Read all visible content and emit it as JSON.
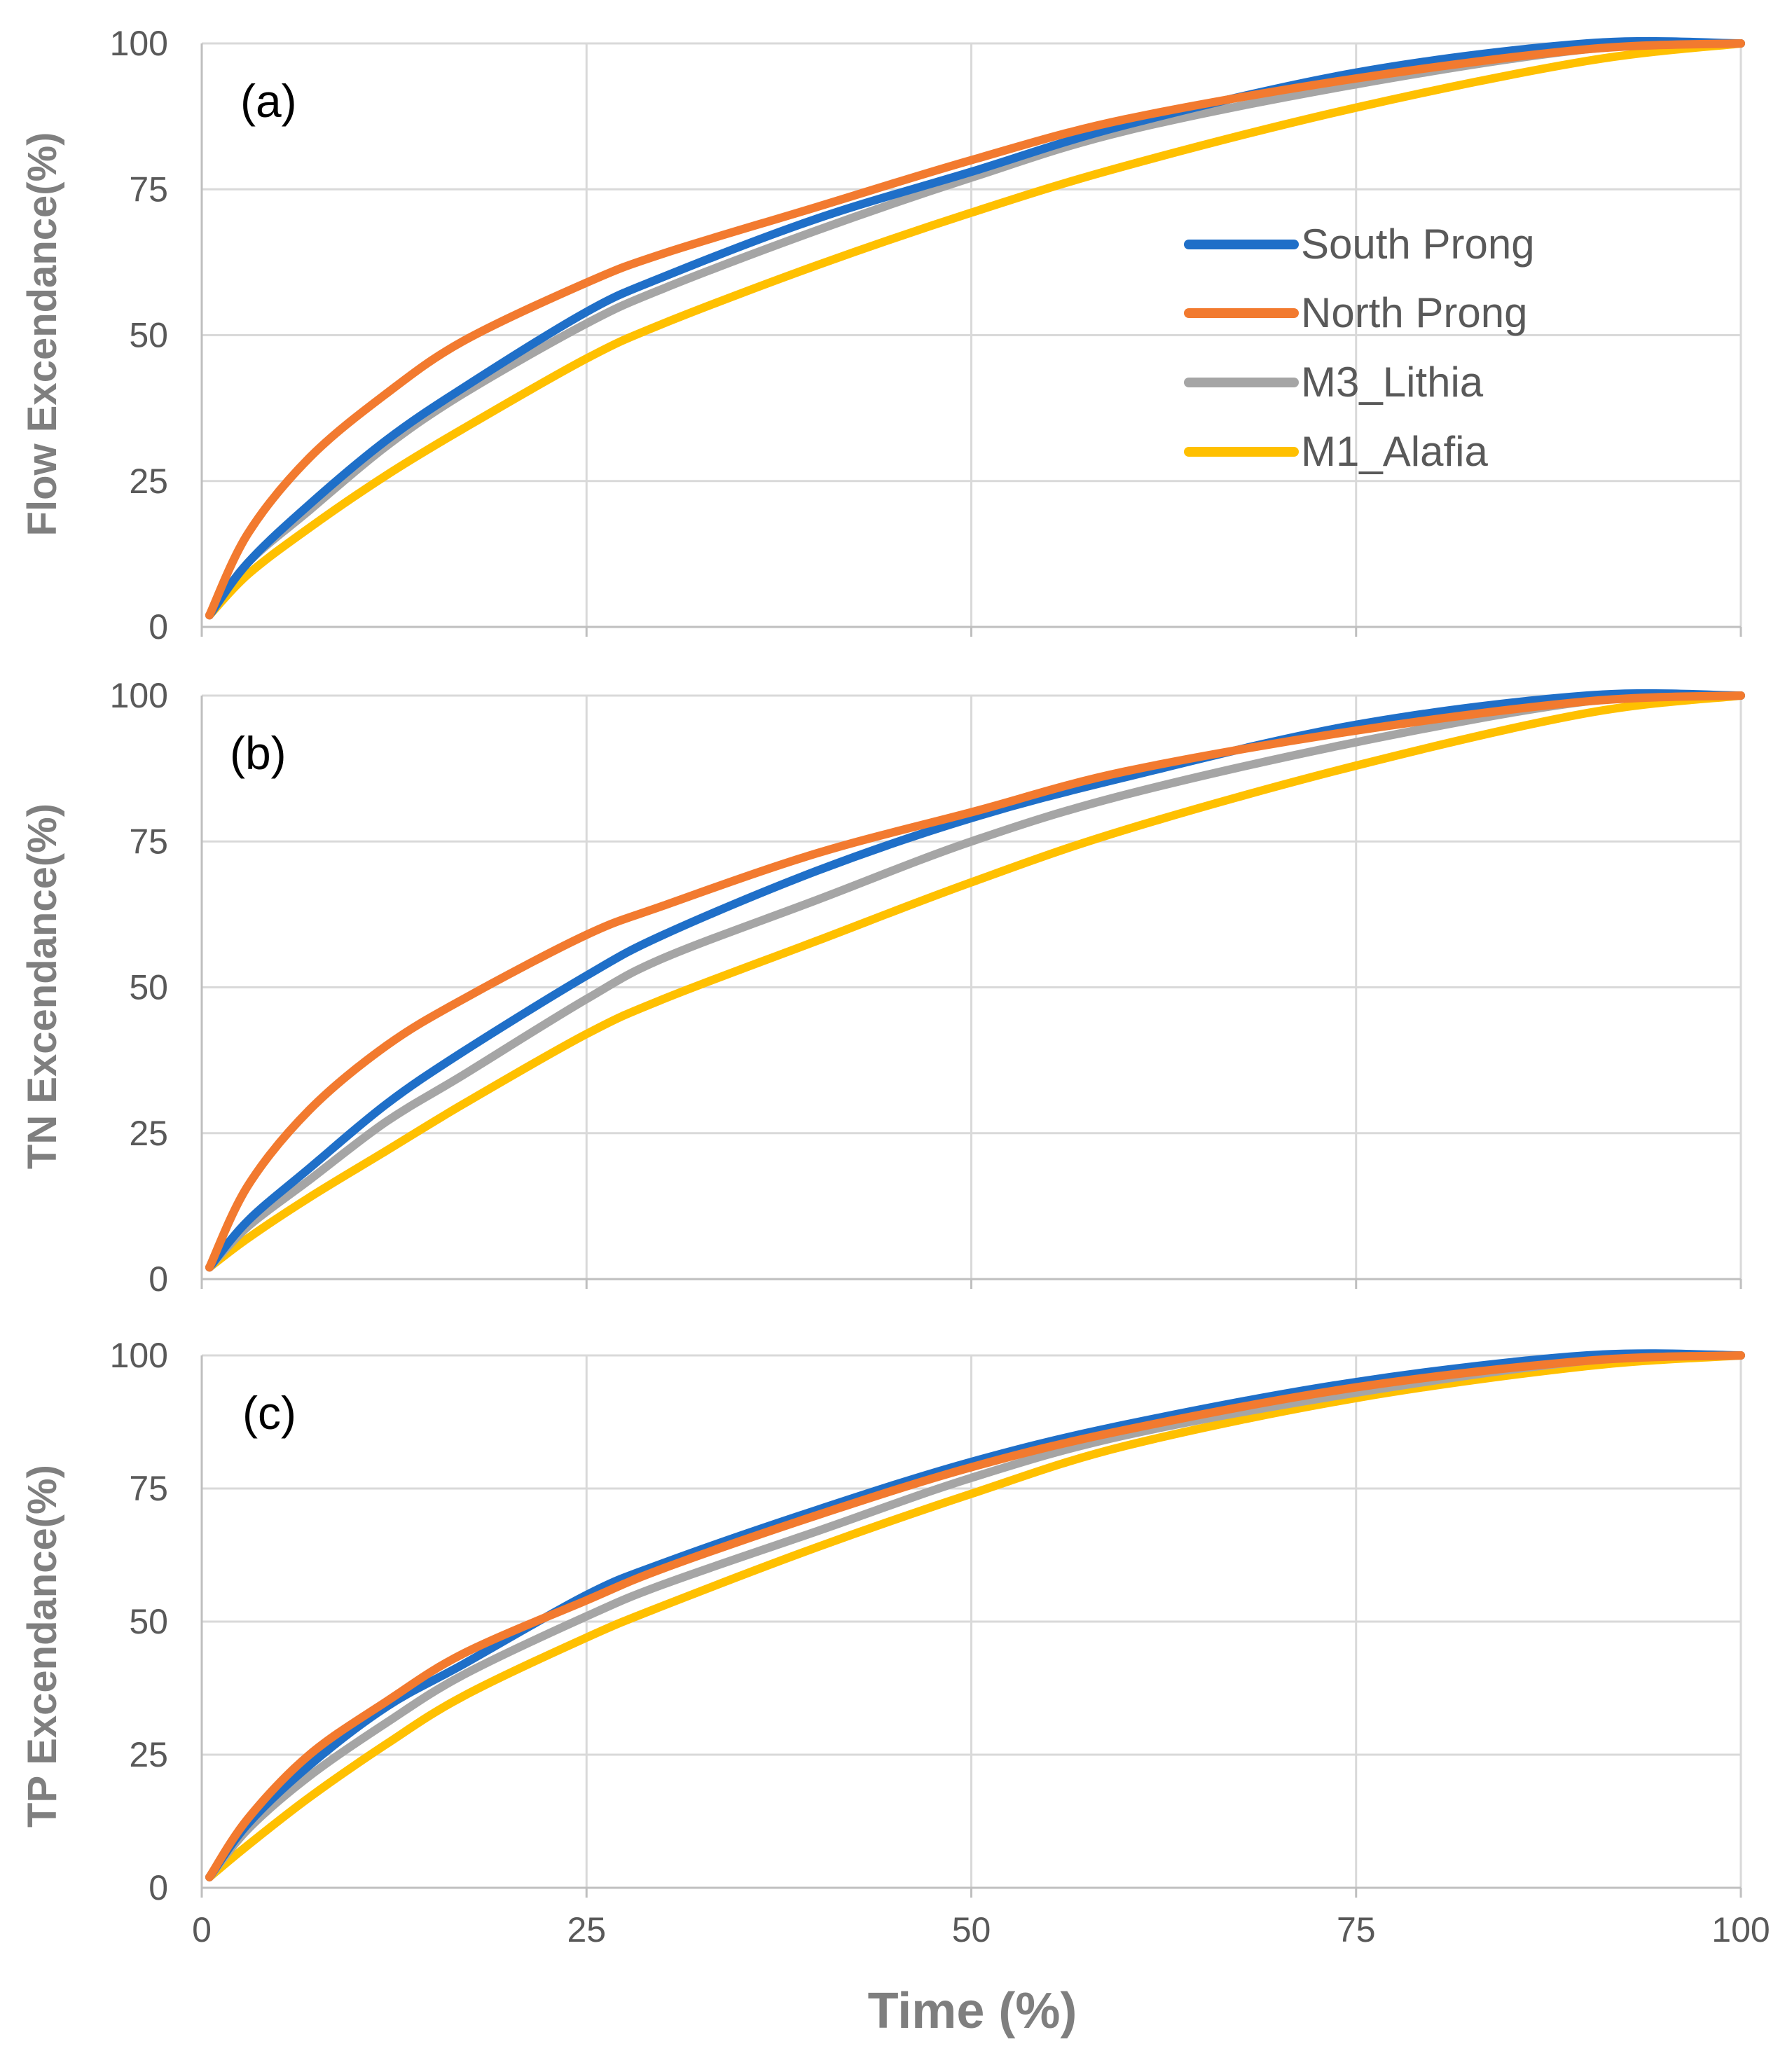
{
  "chart_data": {
    "type": "line",
    "xlabel": "Time (%)",
    "x_ticks": [
      "0",
      "25",
      "50",
      "75",
      "100"
    ],
    "y_ticks": [
      "0",
      "25",
      "50",
      "75",
      "100"
    ],
    "xlim": [
      0,
      100
    ],
    "ylim": [
      0,
      100
    ],
    "grid": true,
    "legend": {
      "placement": "top-right of panel (a)",
      "entries": [
        "South Prong",
        "North Prong",
        "M3_Lithia",
        "M1_Alafia"
      ]
    },
    "colors": {
      "South Prong": "#1f6fc8",
      "North Prong": "#f27a2f",
      "M3_Lithia": "#a5a5a5",
      "M1_Alafia": "#ffc000"
    },
    "series_order": [
      "M1_Alafia",
      "M3_Lithia",
      "South Prong",
      "North Prong"
    ],
    "x": [
      0.5,
      3,
      7,
      12,
      17,
      25,
      30,
      40,
      50,
      60,
      75,
      90,
      100
    ],
    "panels": [
      {
        "label": "(a)",
        "ylabel": "Flow Excendance(%)",
        "series": [
          {
            "name": "South Prong",
            "values": [
              2,
              11,
              21,
              32,
              41,
              54,
              60,
              70,
              78,
              86,
              95,
              100,
              100
            ]
          },
          {
            "name": "North Prong",
            "values": [
              2,
              16,
              29,
              40,
              49,
              59,
              64,
              72,
              80,
              87,
              94,
              99,
              100
            ]
          },
          {
            "name": "M3_Lithia",
            "values": [
              2,
              11,
              20,
              31,
              40,
              52,
              58,
              68,
              77,
              85,
              93,
              99,
              100
            ]
          },
          {
            "name": "M1_Alafia",
            "values": [
              2,
              9,
              17,
              26,
              34,
              46,
              52,
              62,
              71,
              79,
              89,
              97,
              100
            ]
          }
        ]
      },
      {
        "label": "(b)",
        "ylabel": "TN Excendance(%)",
        "series": [
          {
            "name": "South Prong",
            "values": [
              2,
              10,
              19,
              30,
              39,
              52,
              59,
              70,
              79,
              86,
              95,
              100,
              100
            ]
          },
          {
            "name": "North Prong",
            "values": [
              2,
              16,
              29,
              40,
              48,
              59,
              64,
              73,
              80,
              87,
              94,
              99,
              100
            ]
          },
          {
            "name": "M3_Lithia",
            "values": [
              2,
              9,
              17,
              27,
              35,
              48,
              55,
              65,
              75,
              83,
              92,
              99,
              100
            ]
          },
          {
            "name": "M1_Alafia",
            "values": [
              2,
              7,
              14,
              22,
              30,
              42,
              48,
              58,
              68,
              77,
              88,
              97,
              100
            ]
          }
        ]
      },
      {
        "label": "(c)",
        "ylabel": "TP Excendance(%)",
        "series": [
          {
            "name": "South Prong",
            "values": [
              2,
              12,
              23,
              34,
              42,
              55,
              61,
              71,
              80,
              87,
              95,
              100,
              100
            ]
          },
          {
            "name": "North Prong",
            "values": [
              2,
              13,
              25,
              35,
              44,
              54,
              60,
              70,
              79,
              86,
              94,
              99,
              100
            ]
          },
          {
            "name": "M3_Lithia",
            "values": [
              2,
              11,
              21,
              31,
              40,
              51,
              57,
              67,
              77,
              85,
              93,
              99,
              100
            ]
          },
          {
            "name": "M1_Alafia",
            "values": [
              2,
              8,
              17,
              27,
              36,
              47,
              53,
              64,
              74,
              83,
              92,
              98,
              100
            ]
          }
        ]
      }
    ]
  }
}
